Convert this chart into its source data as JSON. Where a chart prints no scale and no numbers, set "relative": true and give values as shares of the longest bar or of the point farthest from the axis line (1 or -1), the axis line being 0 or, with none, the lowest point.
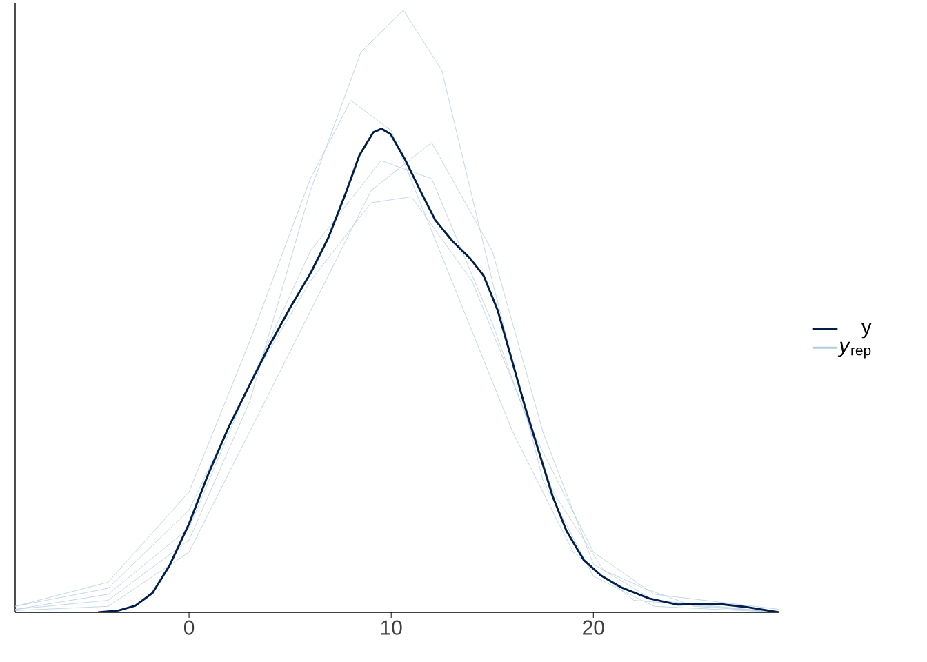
{
  "chart_data": {
    "type": "line",
    "relative": true,
    "xlim": [
      -8.6,
      29.2
    ],
    "xticks": [
      0,
      10,
      20
    ],
    "legend": "right",
    "grid": false,
    "series": [
      {
        "name": "*y*$_{rep}$",
        "color": "#b3cde0",
        "x": [
          -8.6,
          -4,
          0,
          3,
          6,
          8.5,
          10.6,
          12.5,
          15,
          17.5,
          20,
          23,
          29.2
        ],
        "values": [
          0.005,
          0.02,
          0.12,
          0.35,
          0.7,
          0.93,
          1.0,
          0.9,
          0.55,
          0.22,
          0.06,
          0.01,
          0
        ]
      },
      {
        "color": "#b3cde0",
        "x": [
          -8.6,
          -4,
          0,
          3,
          6,
          9,
          11,
          14,
          17,
          20,
          23,
          29.2
        ],
        "values": [
          0.01,
          0.04,
          0.17,
          0.38,
          0.55,
          0.68,
          0.69,
          0.55,
          0.3,
          0.1,
          0.03,
          0.005
        ]
      },
      {
        "color": "#b3cde0",
        "x": [
          -8.6,
          -4,
          0,
          3,
          6,
          9,
          12,
          15,
          17.5,
          20,
          23,
          29.2
        ],
        "values": [
          0.003,
          0.01,
          0.1,
          0.3,
          0.5,
          0.7,
          0.78,
          0.6,
          0.3,
          0.08,
          0.02,
          0
        ]
      },
      {
        "color": "#b3cde0",
        "x": [
          -8.6,
          -4,
          0,
          3,
          6,
          8,
          10,
          13,
          16,
          19,
          22,
          29.2
        ],
        "values": [
          0.01,
          0.05,
          0.2,
          0.45,
          0.72,
          0.85,
          0.8,
          0.55,
          0.3,
          0.1,
          0.02,
          0
        ]
      },
      {
        "color": "#b3cde0",
        "x": [
          -8.6,
          -4,
          0,
          3,
          6,
          9.5,
          12,
          15,
          18,
          20.5,
          22.5,
          25,
          29.2
        ],
        "values": [
          0.005,
          0.03,
          0.14,
          0.38,
          0.6,
          0.75,
          0.72,
          0.48,
          0.2,
          0.07,
          0.04,
          0.01,
          0
        ]
      },
      {
        "name": "y",
        "color": "#011f4b",
        "x": [
          -4.5,
          -3.5,
          -2.66,
          -1.81,
          -0.96,
          0,
          0.92,
          1.95,
          2.97,
          3.99,
          5.02,
          6.04,
          6.89,
          7.75,
          8.43,
          9.11,
          9.52,
          9.97,
          10.65,
          11.5,
          12.18,
          13.04,
          13.89,
          14.57,
          15.26,
          15.94,
          16.62,
          17.3,
          17.99,
          18.67,
          19.52,
          20.38,
          21.4,
          22.76,
          24.13,
          26.18,
          27.54,
          29.2
        ],
        "values": [
          0,
          0.003,
          0.011,
          0.032,
          0.078,
          0.147,
          0.227,
          0.307,
          0.376,
          0.444,
          0.507,
          0.565,
          0.622,
          0.696,
          0.759,
          0.797,
          0.803,
          0.794,
          0.754,
          0.696,
          0.651,
          0.616,
          0.588,
          0.559,
          0.502,
          0.422,
          0.341,
          0.267,
          0.192,
          0.135,
          0.087,
          0.061,
          0.041,
          0.023,
          0.013,
          0.014,
          0.009,
          0
        ]
      }
    ]
  }
}
